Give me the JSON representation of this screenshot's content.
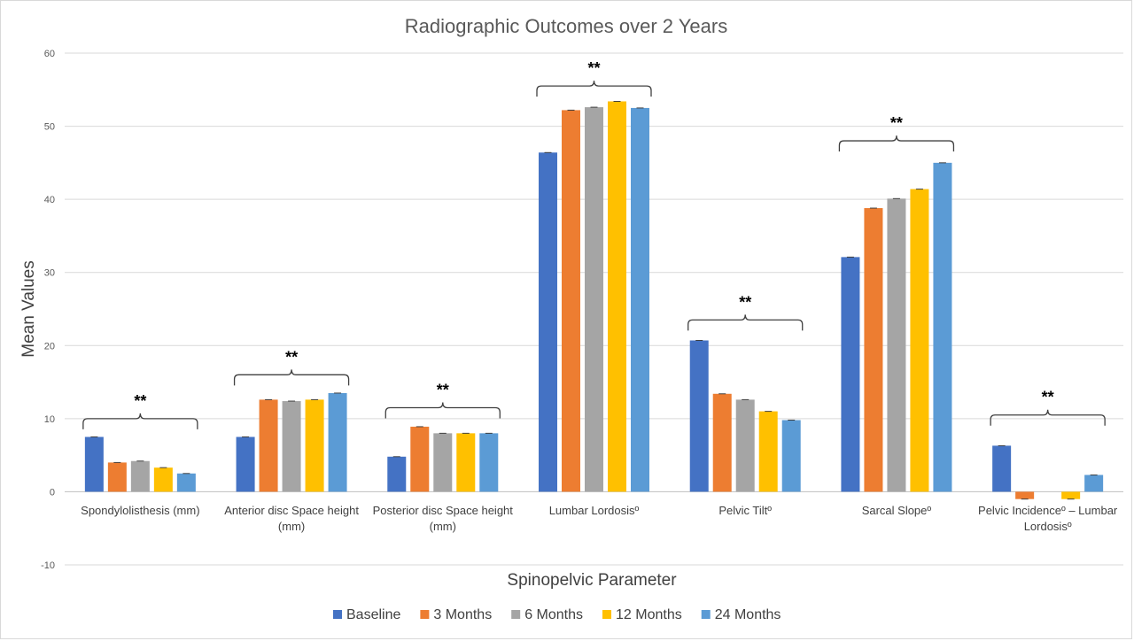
{
  "chart_data": {
    "type": "bar",
    "title": "Radiographic Outcomes over 2 Years",
    "xlabel": "Spinopelvic Parameter",
    "ylabel": "Mean Values",
    "ylim": [
      -10,
      60
    ],
    "yticks": [
      -10,
      0,
      10,
      20,
      30,
      40,
      50,
      60
    ],
    "grid": true,
    "legend_position": "bottom",
    "categories": [
      [
        "Spondylolisthesis (mm)"
      ],
      [
        "Anterior disc Space height",
        "(mm)"
      ],
      [
        "Posterior disc Space height",
        "(mm)"
      ],
      [
        "Lumbar Lordosisº"
      ],
      [
        "Pelvic Tiltº"
      ],
      [
        "Sarcal Slopeº"
      ],
      [
        "Pelvic Incidenceº – Lumbar",
        "Lordosisº"
      ]
    ],
    "series": [
      {
        "name": "Baseline",
        "color": "#4472C4",
        "values": [
          7.5,
          7.5,
          4.8,
          46.4,
          20.7,
          32.1,
          6.3
        ]
      },
      {
        "name": "3 Months",
        "color": "#ED7D31",
        "values": [
          4.0,
          12.6,
          8.9,
          52.2,
          13.4,
          38.8,
          -1.0
        ]
      },
      {
        "name": "6 Months",
        "color": "#A5A5A5",
        "values": [
          4.2,
          12.4,
          8.0,
          52.6,
          12.6,
          40.1,
          0.0
        ]
      },
      {
        "name": "12 Months",
        "color": "#FFC000",
        "values": [
          3.3,
          12.6,
          8.0,
          53.4,
          11.0,
          41.4,
          -1.0
        ]
      },
      {
        "name": "24 Months",
        "color": "#5B9BD5",
        "values": [
          2.5,
          13.5,
          8.0,
          52.5,
          9.8,
          45.0,
          2.3
        ]
      }
    ],
    "annotations": [
      {
        "category": 0,
        "text": "**",
        "y": 10
      },
      {
        "category": 1,
        "text": "**",
        "y": 16
      },
      {
        "category": 2,
        "text": "**",
        "y": 11.5
      },
      {
        "category": 3,
        "text": "**",
        "y": 55.5
      },
      {
        "category": 4,
        "text": "**",
        "y": 23.5
      },
      {
        "category": 5,
        "text": "**",
        "y": 48
      },
      {
        "category": 6,
        "text": "**",
        "y": 10.5
      }
    ]
  }
}
